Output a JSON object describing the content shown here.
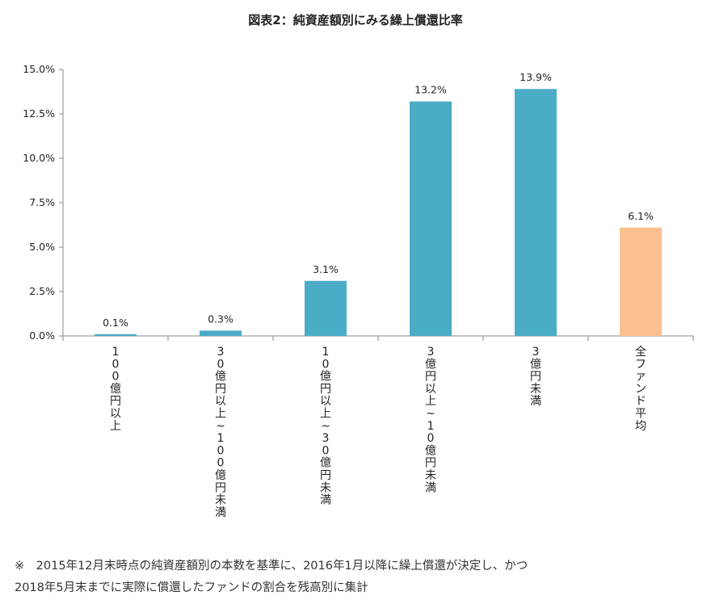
{
  "chart_data": {
    "type": "bar",
    "title": "図表2：純資産額別にみる繰上償還比率",
    "categories": [
      "100億円以上",
      "30億円以上~100億円未満",
      "10億円以上~30億円未満",
      "3億円以上~10億円未満",
      "3億円未満",
      "全ファンド平均"
    ],
    "values": [
      0.1,
      0.3,
      3.1,
      13.2,
      13.9,
      6.1
    ],
    "data_labels": [
      "0.1%",
      "0.3%",
      "3.1%",
      "13.2%",
      "13.9%",
      "6.1%"
    ],
    "y_ticks": [
      0,
      2.5,
      5.0,
      7.5,
      10.0,
      12.5,
      15.0
    ],
    "y_tick_labels": [
      "0.0%",
      "2.5%",
      "5.0%",
      "7.5%",
      "10.0%",
      "12.5%",
      "15.0%"
    ],
    "ylim": [
      0,
      15
    ],
    "xlabel": "",
    "ylabel": "",
    "grid": false,
    "colors": [
      "#4bacc6",
      "#4bacc6",
      "#4bacc6",
      "#4bacc6",
      "#4bacc6",
      "#fac090"
    ]
  },
  "footnote": {
    "line1": "※　2015年12月末時点の純資産額別の本数を基準に、2016年1月以降に繰上償還が決定し、かつ",
    "line2": "2018年5月末までに実際に償還したファンドの割合を残高別に集計"
  }
}
